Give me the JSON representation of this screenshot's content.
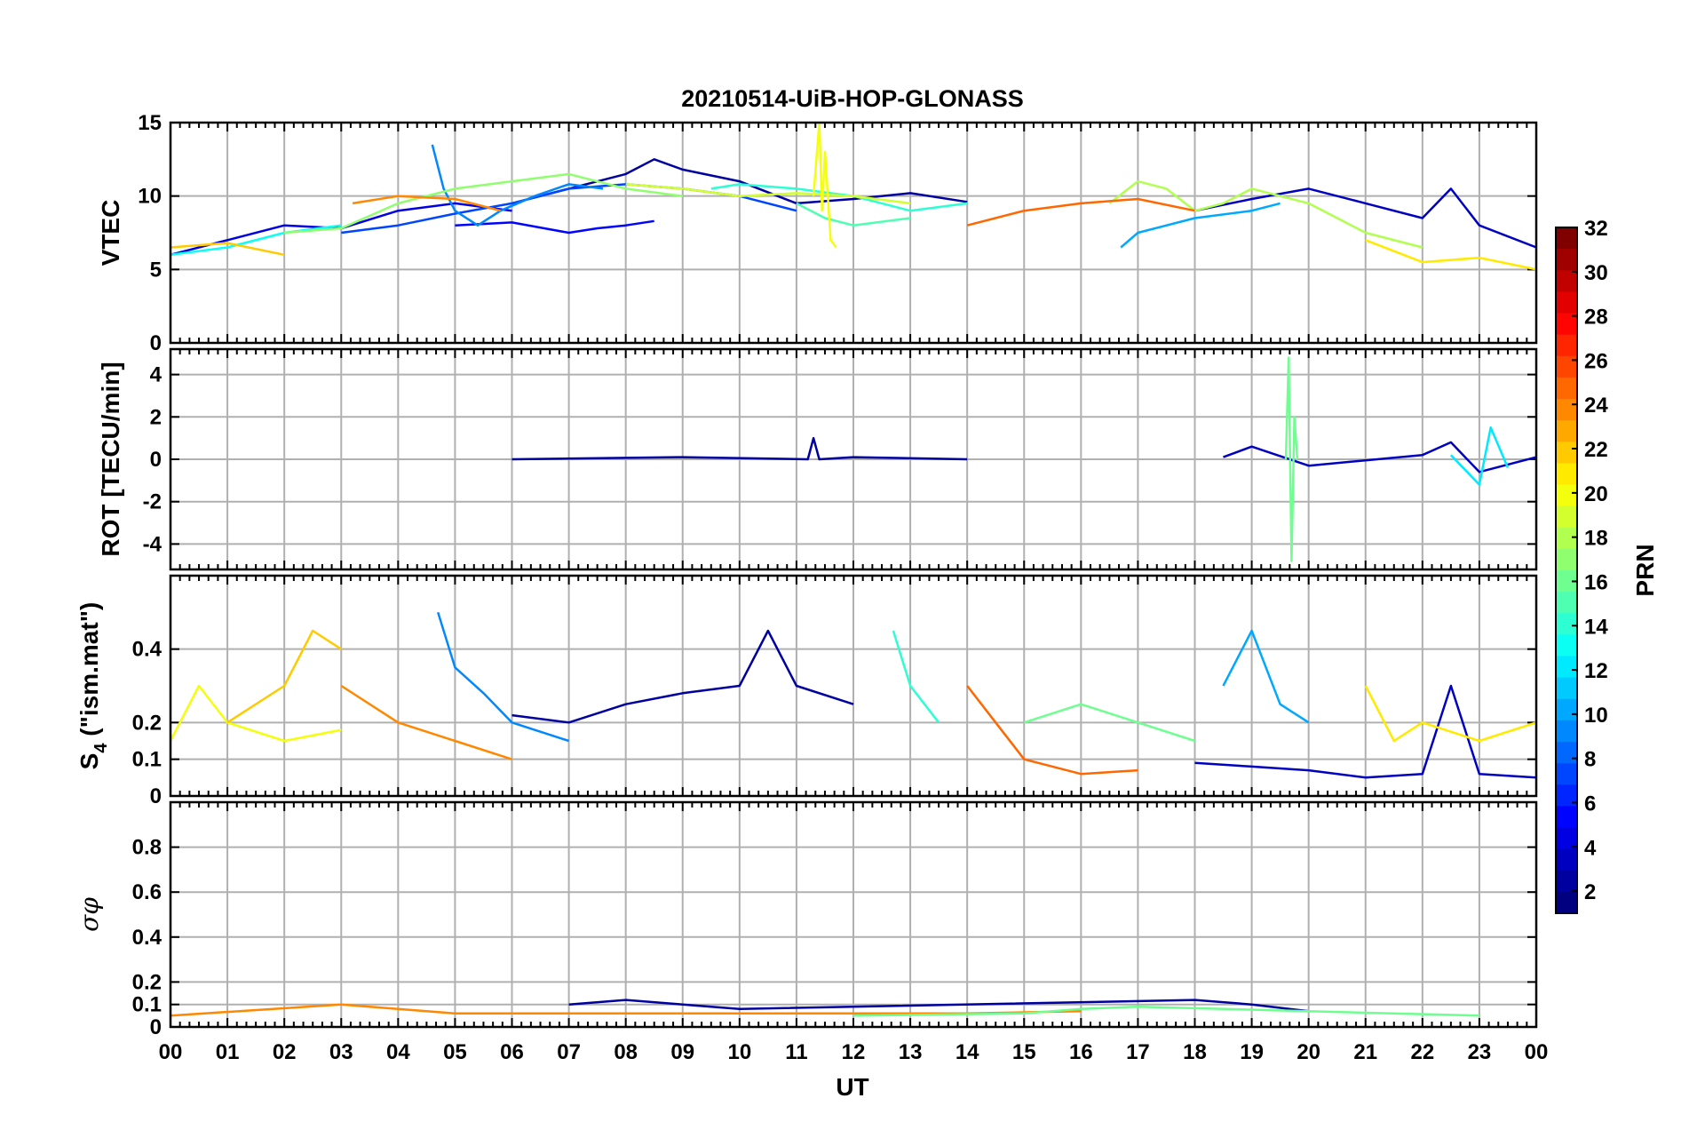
{
  "colors": {
    "axis": "#000000",
    "grid": "#b0b0b0",
    "background": "#ffffff"
  },
  "chart_data": {
    "type": "line",
    "title": "20210514-UiB-HOP-GLONASS",
    "xlabel": "UT",
    "x_ticks": [
      "00",
      "01",
      "02",
      "03",
      "04",
      "05",
      "06",
      "07",
      "08",
      "09",
      "10",
      "11",
      "12",
      "13",
      "14",
      "15",
      "16",
      "17",
      "18",
      "19",
      "20",
      "21",
      "22",
      "23",
      "00"
    ],
    "xlim_hours": [
      0,
      24
    ],
    "colorbar": {
      "label": "PRN",
      "range": [
        1,
        32
      ],
      "ticks": [
        "2",
        "4",
        "6",
        "8",
        "10",
        "12",
        "14",
        "16",
        "18",
        "20",
        "22",
        "24",
        "26",
        "28",
        "30",
        "32"
      ],
      "colormap": "jet"
    },
    "panels": [
      {
        "name": "vtec",
        "ylabel": "VTEC",
        "ylim": [
          0,
          15
        ],
        "yticks": [
          0,
          5,
          10,
          15
        ],
        "ytick_labels": [
          "0",
          "5",
          "10",
          "15"
        ],
        "series": [
          {
            "prn": 2,
            "x": [
              6.0,
              7.0,
              8.0,
              8.5,
              9.0,
              10.0,
              11.0,
              12.0,
              13.0,
              14.0
            ],
            "y": [
              9.5,
              10.5,
              11.5,
              12.5,
              11.8,
              11.0,
              9.5,
              9.8,
              10.2,
              9.6
            ]
          },
          {
            "prn": 3,
            "x": [
              18.0,
              19.0,
              20.0,
              21.0,
              22.0,
              22.5,
              23.0,
              24.0
            ],
            "y": [
              9.0,
              9.8,
              10.5,
              9.5,
              8.5,
              10.5,
              8.0,
              6.5
            ]
          },
          {
            "prn": 4,
            "x": [
              0.0,
              1.0,
              2.0,
              3.0,
              4.0,
              5.0,
              6.0
            ],
            "y": [
              6.0,
              7.0,
              8.0,
              7.8,
              9.0,
              9.5,
              9.0
            ]
          },
          {
            "prn": 5,
            "x": [
              5.0,
              6.0,
              7.0,
              7.5,
              8.0,
              8.5
            ],
            "y": [
              8.0,
              8.2,
              7.5,
              7.8,
              8.0,
              8.3
            ]
          },
          {
            "prn": 7,
            "x": [
              3.0,
              4.0,
              5.0,
              6.0,
              7.0,
              8.0,
              9.0,
              10.0,
              11.0
            ],
            "y": [
              7.5,
              8.0,
              8.8,
              9.5,
              10.5,
              10.8,
              10.5,
              10.0,
              9.0
            ]
          },
          {
            "prn": 9,
            "x": [
              4.6,
              4.8,
              5.0,
              5.4,
              5.8,
              6.4,
              7.0,
              7.6
            ],
            "y": [
              13.5,
              10.5,
              9.0,
              8.0,
              9.0,
              10.0,
              10.8,
              10.5
            ]
          },
          {
            "prn": 10,
            "x": [
              16.7,
              17.0,
              18.0,
              19.0,
              19.5
            ],
            "y": [
              6.5,
              7.5,
              8.5,
              9.0,
              9.5
            ]
          },
          {
            "prn": 13,
            "x": [
              0.0,
              1.0,
              2.0,
              3.0
            ],
            "y": [
              6.0,
              6.5,
              7.5,
              8.0
            ]
          },
          {
            "prn": 14,
            "x": [
              9.5,
              10.0,
              11.0,
              12.0,
              13.0,
              14.0
            ],
            "y": [
              10.5,
              10.8,
              10.5,
              10.0,
              9.0,
              9.5
            ]
          },
          {
            "prn": 15,
            "x": [
              11.0,
              11.5,
              12.0,
              13.0
            ],
            "y": [
              9.5,
              8.5,
              8.0,
              8.5
            ]
          },
          {
            "prn": 17,
            "x": [
              2.0,
              3.0,
              4.0,
              5.0,
              6.0,
              7.0,
              8.0,
              9.0
            ],
            "y": [
              7.5,
              7.8,
              9.5,
              10.5,
              11.0,
              11.5,
              10.5,
              10.0
            ]
          },
          {
            "prn": 18,
            "x": [
              16.5,
              17.0,
              17.5,
              18.0,
              18.5,
              19.0,
              20.0,
              21.0,
              22.0
            ],
            "y": [
              9.5,
              11.0,
              10.5,
              9.0,
              9.5,
              10.5,
              9.5,
              7.5,
              6.5
            ]
          },
          {
            "prn": 19,
            "x": [
              8.0,
              9.0,
              10.0,
              11.0,
              12.0,
              13.0
            ],
            "y": [
              10.8,
              10.5,
              10.0,
              10.2,
              10.0,
              9.5
            ]
          },
          {
            "prn": 20,
            "x": [
              11.3,
              11.4,
              11.45,
              11.5,
              11.6,
              11.7
            ],
            "y": [
              10.0,
              15.0,
              9.0,
              13.0,
              7.0,
              6.5
            ]
          },
          {
            "prn": 21,
            "x": [
              21.0,
              22.0,
              23.0,
              24.0
            ],
            "y": [
              7.0,
              5.5,
              5.8,
              5.0
            ]
          },
          {
            "prn": 22,
            "x": [
              0.0,
              1.0,
              2.0
            ],
            "y": [
              6.5,
              6.8,
              6.0
            ]
          },
          {
            "prn": 24,
            "x": [
              3.2,
              4.0,
              5.0,
              5.8
            ],
            "y": [
              9.5,
              10.0,
              9.8,
              9.0
            ]
          },
          {
            "prn": 25,
            "x": [
              14.0,
              15.0,
              16.0,
              17.0,
              18.0
            ],
            "y": [
              8.0,
              9.0,
              9.5,
              9.8,
              9.0
            ]
          }
        ]
      },
      {
        "name": "rot",
        "ylabel": "ROT [TECU/min]",
        "ylim": [
          -5.2,
          5.2
        ],
        "yticks": [
          -4,
          -2,
          0,
          2,
          4
        ],
        "ytick_labels": [
          "-4",
          "-2",
          "0",
          "2",
          "4"
        ],
        "series": [
          {
            "prn": 2,
            "x": [
              6.0,
              9.0,
              11.2,
              11.3,
              11.4,
              12.0,
              14.0
            ],
            "y": [
              0.0,
              0.1,
              0.0,
              1.0,
              0.0,
              0.1,
              0.0
            ]
          },
          {
            "prn": 3,
            "x": [
              18.5,
              19.0,
              20.0,
              22.0,
              22.5,
              23.0,
              24.0
            ],
            "y": [
              0.1,
              0.6,
              -0.3,
              0.2,
              0.8,
              -0.6,
              0.1
            ]
          },
          {
            "prn": 16,
            "x": [
              19.6,
              19.65,
              19.7,
              19.75,
              19.8
            ],
            "y": [
              0.0,
              4.8,
              -4.8,
              2.0,
              0.0
            ]
          },
          {
            "prn": 12,
            "x": [
              22.5,
              23.0,
              23.2,
              23.5
            ],
            "y": [
              0.2,
              -1.2,
              1.5,
              -0.4
            ]
          }
        ]
      },
      {
        "name": "s4",
        "ylabel": "S4 (\"ism.mat\")",
        "ylabel_main": "S",
        "ylabel_sub": "4",
        "ylabel_rest": " (\"ism.mat\")",
        "ylim": [
          0,
          0.6
        ],
        "yticks": [
          0,
          0.1,
          0.2,
          0.4
        ],
        "ytick_labels": [
          "0",
          "0.1",
          "0.2",
          "0.4"
        ],
        "series": [
          {
            "prn": 2,
            "x": [
              6.0,
              7.0,
              8.0,
              9.0,
              10.0,
              10.5,
              11.0,
              12.0
            ],
            "y": [
              0.22,
              0.2,
              0.25,
              0.28,
              0.3,
              0.45,
              0.3,
              0.25
            ]
          },
          {
            "prn": 3,
            "x": [
              18.0,
              19.0,
              20.0,
              21.0,
              22.0,
              22.5,
              23.0,
              24.0
            ],
            "y": [
              0.09,
              0.08,
              0.07,
              0.05,
              0.06,
              0.3,
              0.06,
              0.05
            ]
          },
          {
            "prn": 9,
            "x": [
              4.7,
              5.0,
              5.5,
              6.0,
              7.0
            ],
            "y": [
              0.5,
              0.35,
              0.28,
              0.2,
              0.15
            ]
          },
          {
            "prn": 10,
            "x": [
              18.5,
              19.0,
              19.5,
              20.0
            ],
            "y": [
              0.3,
              0.45,
              0.25,
              0.2
            ]
          },
          {
            "prn": 14,
            "x": [
              12.7,
              13.0,
              13.5
            ],
            "y": [
              0.45,
              0.3,
              0.2
            ]
          },
          {
            "prn": 16,
            "x": [
              15.0,
              16.0,
              17.0,
              18.0
            ],
            "y": [
              0.2,
              0.25,
              0.2,
              0.15
            ]
          },
          {
            "prn": 20,
            "x": [
              0.0,
              0.5,
              1.0,
              2.0,
              3.0
            ],
            "y": [
              0.15,
              0.3,
              0.2,
              0.15,
              0.18
            ]
          },
          {
            "prn": 22,
            "x": [
              1.0,
              2.0,
              2.5,
              3.0
            ],
            "y": [
              0.2,
              0.3,
              0.45,
              0.4
            ]
          },
          {
            "prn": 24,
            "x": [
              3.0,
              4.0,
              5.0,
              6.0
            ],
            "y": [
              0.3,
              0.2,
              0.15,
              0.1
            ]
          },
          {
            "prn": 25,
            "x": [
              14.0,
              14.5,
              15.0,
              16.0,
              17.0
            ],
            "y": [
              0.3,
              0.2,
              0.1,
              0.06,
              0.07
            ]
          },
          {
            "prn": 21,
            "x": [
              21.0,
              21.5,
              22.0,
              23.0,
              24.0
            ],
            "y": [
              0.3,
              0.15,
              0.2,
              0.15,
              0.2
            ]
          }
        ]
      },
      {
        "name": "sigma",
        "ylabel": "σφ",
        "ylim": [
          0,
          1.0
        ],
        "yticks": [
          0,
          0.1,
          0.2,
          0.4,
          0.6,
          0.8
        ],
        "ytick_labels": [
          "0",
          "0.1",
          "0.2",
          "0.4",
          "0.6",
          "0.8"
        ],
        "series": [
          {
            "prn": 2,
            "x": [
              7.0,
              8.0,
              9.0,
              10.0,
              18.0,
              19.0,
              20.0
            ],
            "y": [
              0.1,
              0.12,
              0.1,
              0.08,
              0.12,
              0.1,
              0.07
            ]
          },
          {
            "prn": 24,
            "x": [
              0.0,
              3.0,
              4.0,
              5.0,
              14.0,
              16.0
            ],
            "y": [
              0.05,
              0.1,
              0.08,
              0.06,
              0.06,
              0.07
            ]
          },
          {
            "prn": 16,
            "x": [
              12.0,
              15.0,
              16.0,
              17.0,
              23.0
            ],
            "y": [
              0.05,
              0.06,
              0.08,
              0.09,
              0.05
            ]
          }
        ]
      }
    ]
  }
}
